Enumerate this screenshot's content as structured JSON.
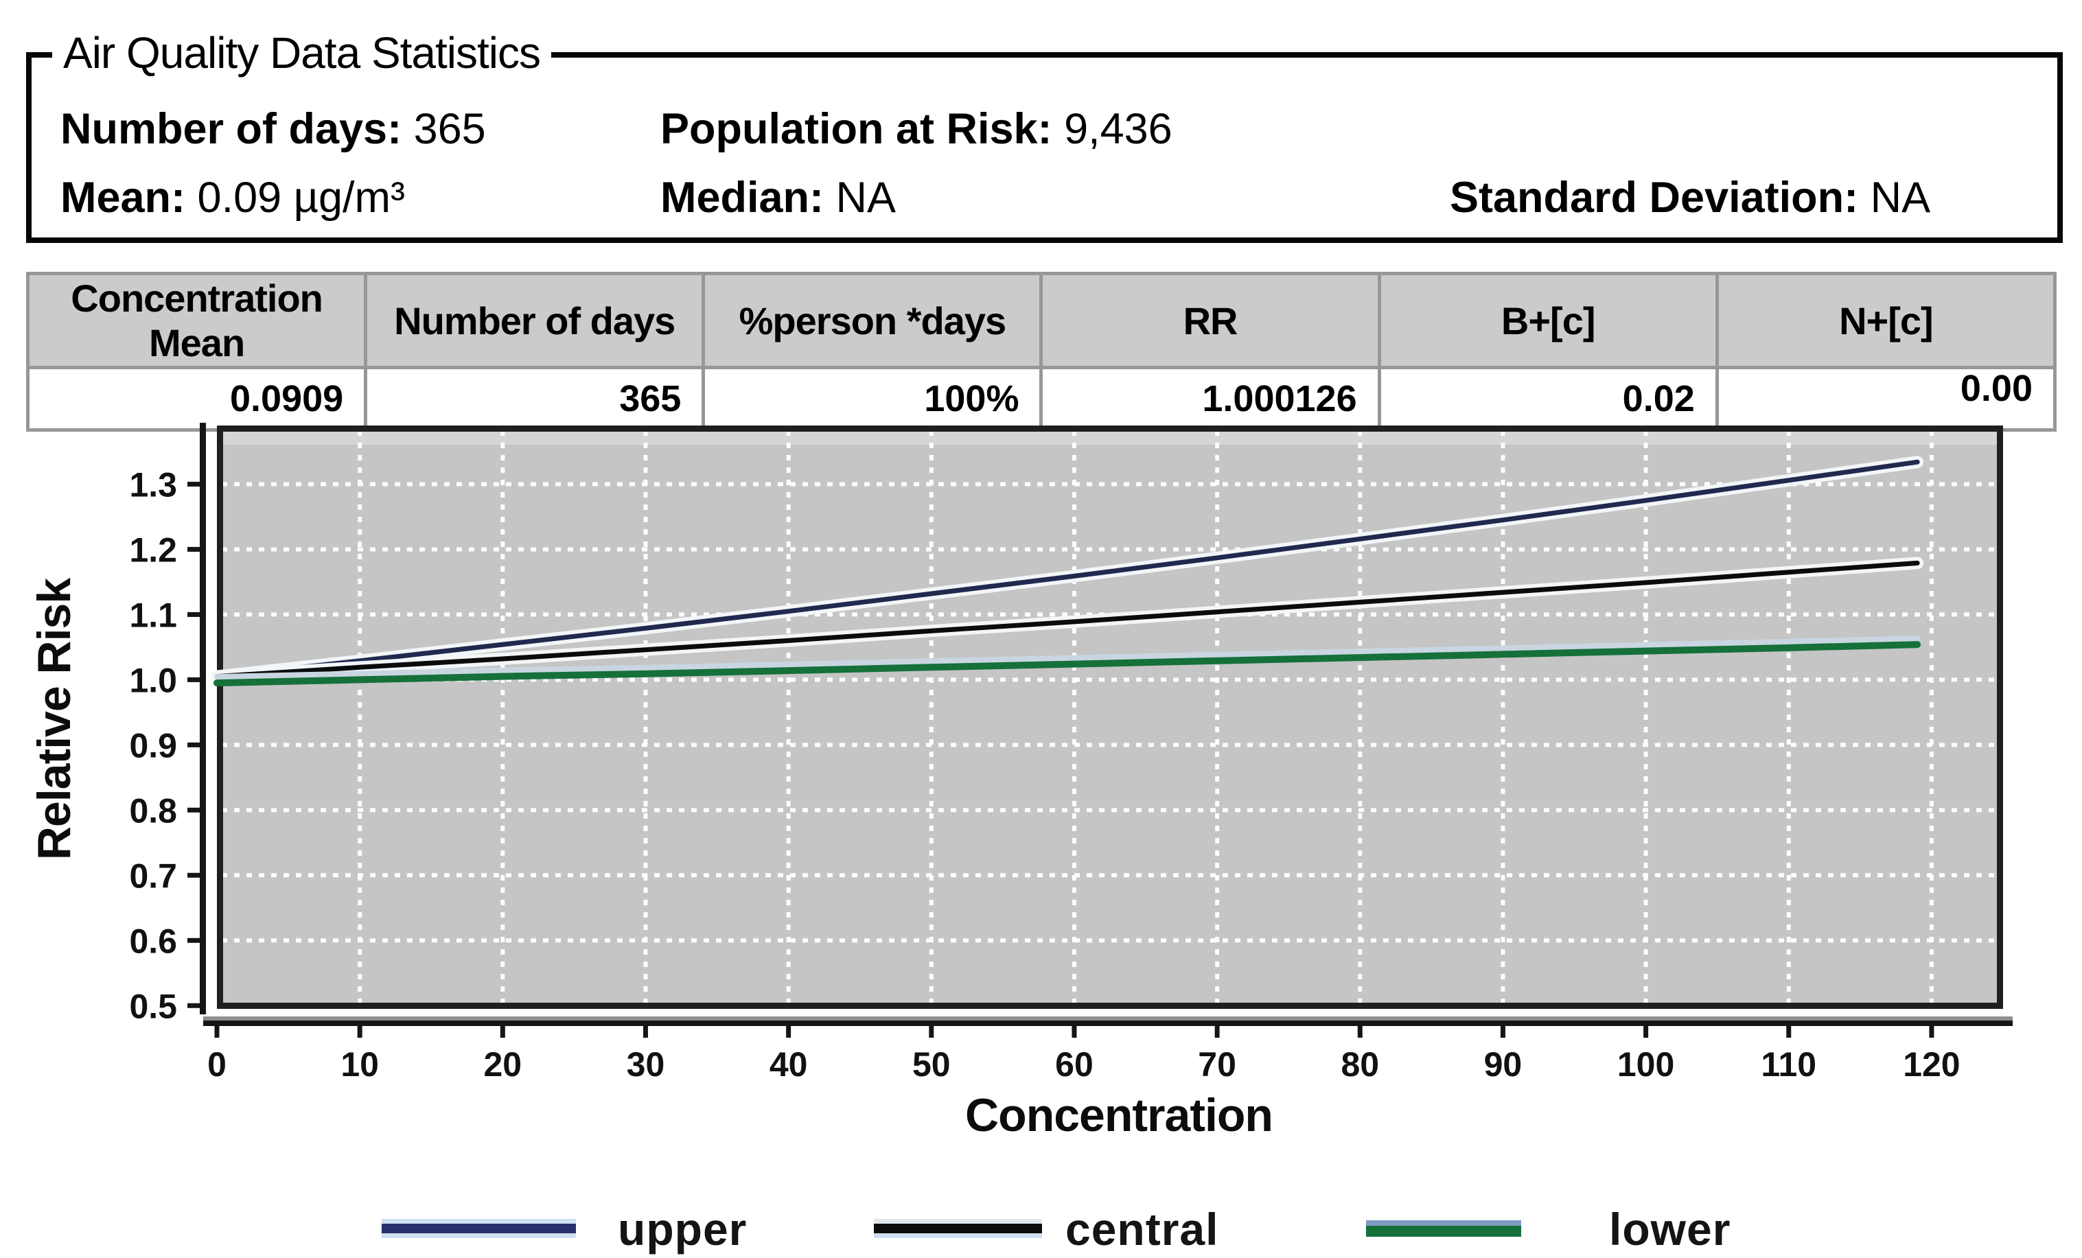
{
  "stats_box": {
    "title": "Air Quality Data Statistics",
    "fields": [
      {
        "label": "Number of days:",
        "value": "365"
      },
      {
        "label": "Population at Risk:",
        "value": "9,436"
      },
      {
        "label": "Mean:",
        "value": "0.09 µg/m³"
      },
      {
        "label": "Median:",
        "value": "NA"
      },
      {
        "label": "Standard Deviation:",
        "value": "NA"
      }
    ]
  },
  "table": {
    "columns": [
      "Concentration Mean",
      "Number of days",
      "%person *days",
      "RR",
      "B+[c]",
      "N+[c]"
    ],
    "rows": [
      [
        "0.0909",
        "365",
        "100%",
        "1.000126",
        "0.02",
        "0.00"
      ]
    ]
  },
  "chart_data": {
    "type": "line",
    "xlabel": "Concentration",
    "ylabel": "Relative Risk",
    "x": [
      0,
      10,
      20,
      30,
      40,
      50,
      60,
      70,
      80,
      90,
      100,
      110,
      119
    ],
    "series": [
      {
        "name": "upper",
        "color": "#20294e",
        "casing": "#f3f6f8",
        "values": [
          1.005,
          1.029,
          1.054,
          1.079,
          1.105,
          1.132,
          1.159,
          1.187,
          1.216,
          1.245,
          1.275,
          1.306,
          1.334
        ]
      },
      {
        "name": "central",
        "color": "#0b0b0b",
        "casing": "#f3f6f8",
        "values": [
          1.005,
          1.019,
          1.032,
          1.046,
          1.06,
          1.075,
          1.089,
          1.104,
          1.119,
          1.134,
          1.149,
          1.165,
          1.179
        ]
      },
      {
        "name": "lower",
        "color": "#16703a",
        "casing": "#c9d6e2",
        "values": [
          0.995,
          1.0,
          1.005,
          1.009,
          1.014,
          1.019,
          1.024,
          1.029,
          1.034,
          1.039,
          1.044,
          1.049,
          1.054
        ]
      }
    ],
    "xlim": [
      0,
      125
    ],
    "ylim": [
      0.495,
      1.39
    ],
    "xticks": [
      0,
      10,
      20,
      30,
      40,
      50,
      60,
      70,
      80,
      90,
      100,
      110,
      120
    ],
    "yticks": [
      "0.5",
      "0.6",
      "0.7",
      "0.8",
      "0.9",
      "1.0",
      "1.1",
      "1.2",
      "1.3"
    ],
    "grid": true,
    "plot_bg": "#c5c5c5",
    "gridline_color": "#fdfdfd",
    "legend_position": "bottom"
  },
  "legend": {
    "items": [
      {
        "label": "upper",
        "stripes": [
          {
            "color": "#cfe0f2",
            "h": 7
          },
          {
            "color": "#28306b",
            "h": 14
          },
          {
            "color": "#cfe0f2",
            "h": 7
          }
        ]
      },
      {
        "label": "central",
        "stripes": [
          {
            "color": "#dfe7ec",
            "h": 7
          },
          {
            "color": "#0d0d0d",
            "h": 14
          },
          {
            "color": "#cfe0f2",
            "h": 7
          }
        ]
      },
      {
        "label": "lower",
        "stripes": [
          {
            "color": "#7e9cc2",
            "h": 8
          },
          {
            "color": "#16703a",
            "h": 16
          }
        ]
      }
    ]
  }
}
